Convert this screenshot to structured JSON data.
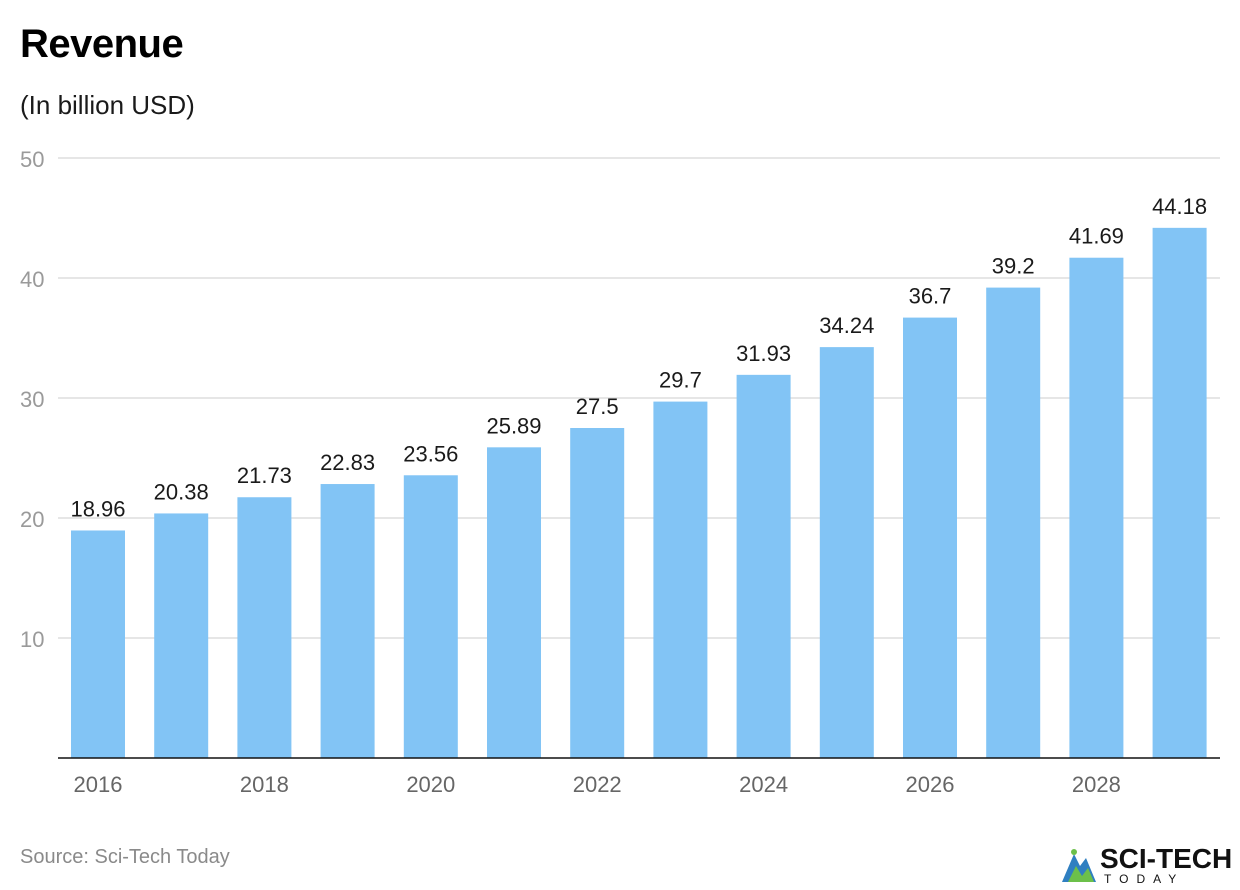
{
  "chart_data": {
    "type": "bar",
    "title": "Revenue",
    "subtitle": "(In billion USD)",
    "categories": [
      "2016",
      "2017",
      "2018",
      "2019",
      "2020",
      "2021",
      "2022",
      "2023",
      "2024",
      "2025",
      "2026",
      "2027",
      "2028",
      "2029"
    ],
    "x_tick_labels": [
      "2016",
      "2018",
      "2020",
      "2022",
      "2024",
      "2026",
      "2028"
    ],
    "values": [
      18.96,
      20.38,
      21.73,
      22.83,
      23.56,
      25.89,
      27.5,
      29.7,
      31.93,
      34.24,
      36.7,
      39.2,
      41.69,
      44.18
    ],
    "value_labels": [
      "18.96",
      "20.38",
      "21.73",
      "22.83",
      "23.56",
      "25.89",
      "27.5",
      "29.7",
      "31.93",
      "34.24",
      "36.7",
      "39.2",
      "41.69",
      "44.18"
    ],
    "yticks": [
      10,
      20,
      30,
      40,
      50
    ],
    "ylim": [
      0,
      50
    ],
    "grid": true,
    "bar_color": "#82c4f5"
  },
  "footer": {
    "source": "Source: Sci-Tech Today",
    "logo_name": "SCI-TECH",
    "logo_sub": "TODAY"
  }
}
